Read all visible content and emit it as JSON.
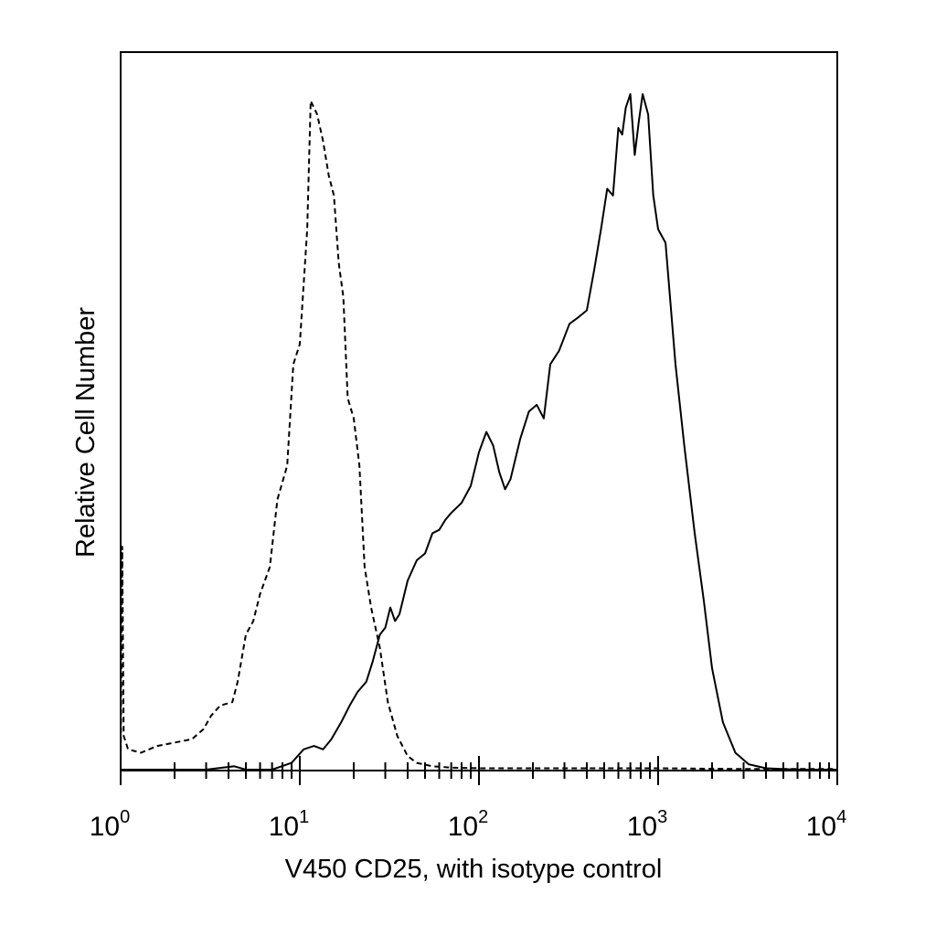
{
  "chart_data": {
    "type": "line",
    "xlabel": "V450 CD25, with isotype control",
    "ylabel": "Relative Cell Number",
    "xscale": "log",
    "xlim": [
      1,
      10000
    ],
    "ylim": [
      0,
      100
    ],
    "grid": false,
    "x_ticks": [
      {
        "base": "10",
        "exp": "0",
        "value": 1
      },
      {
        "base": "10",
        "exp": "1",
        "value": 10
      },
      {
        "base": "10",
        "exp": "2",
        "value": 100
      },
      {
        "base": "10",
        "exp": "3",
        "value": 1000
      },
      {
        "base": "10",
        "exp": "4",
        "value": 10000
      }
    ],
    "series": [
      {
        "style": "dashed",
        "color": "#000000",
        "points": [
          [
            1.0,
            0
          ],
          [
            1.02,
            33
          ],
          [
            1.04,
            5
          ],
          [
            1.1,
            3
          ],
          [
            1.3,
            2.5
          ],
          [
            1.6,
            3.5
          ],
          [
            2.0,
            4
          ],
          [
            2.5,
            4.5
          ],
          [
            2.9,
            6
          ],
          [
            3.2,
            8
          ],
          [
            3.6,
            9.5
          ],
          [
            4.2,
            10
          ],
          [
            4.5,
            13
          ],
          [
            5.0,
            20
          ],
          [
            5.5,
            22
          ],
          [
            6.0,
            26
          ],
          [
            6.8,
            30
          ],
          [
            7.5,
            40
          ],
          [
            8.5,
            45
          ],
          [
            9.2,
            60
          ],
          [
            10.0,
            63
          ],
          [
            11.0,
            80
          ],
          [
            11.5,
            99
          ],
          [
            12.5,
            97
          ],
          [
            13.5,
            93
          ],
          [
            14.5,
            88
          ],
          [
            15.5,
            85
          ],
          [
            16.5,
            75
          ],
          [
            17.5,
            70
          ],
          [
            18.5,
            55
          ],
          [
            20.0,
            52
          ],
          [
            21.5,
            45
          ],
          [
            23.0,
            30
          ],
          [
            25.0,
            24
          ],
          [
            28.0,
            18
          ],
          [
            31.0,
            10
          ],
          [
            35.0,
            5
          ],
          [
            40.0,
            2
          ],
          [
            45.0,
            1
          ],
          [
            55.0,
            0.5
          ],
          [
            70.0,
            0.3
          ],
          [
            100.0,
            0.2
          ],
          [
            200.0,
            0.2
          ],
          [
            500.0,
            0.2
          ],
          [
            1000.0,
            0.2
          ],
          [
            3000.0,
            0.1
          ],
          [
            10000.0,
            0.1
          ]
        ]
      },
      {
        "style": "solid",
        "color": "#000000",
        "points": [
          [
            1.0,
            0
          ],
          [
            2.0,
            0
          ],
          [
            3.0,
            0
          ],
          [
            4.3,
            0.5
          ],
          [
            5.0,
            0
          ],
          [
            7.0,
            0
          ],
          [
            9.0,
            1
          ],
          [
            10.5,
            3
          ],
          [
            12.0,
            3.5
          ],
          [
            13.5,
            3
          ],
          [
            15.0,
            4.5
          ],
          [
            17.0,
            7
          ],
          [
            19.0,
            9.5
          ],
          [
            21.0,
            11.5
          ],
          [
            23.5,
            13
          ],
          [
            25.5,
            16
          ],
          [
            28.0,
            20
          ],
          [
            30.0,
            21
          ],
          [
            32.0,
            24
          ],
          [
            34.0,
            22
          ],
          [
            36.0,
            23
          ],
          [
            40.0,
            28
          ],
          [
            45.0,
            31
          ],
          [
            50.0,
            32
          ],
          [
            55.0,
            35
          ],
          [
            60.0,
            35.5
          ],
          [
            65.0,
            37
          ],
          [
            70.0,
            38
          ],
          [
            80.0,
            39.5
          ],
          [
            90.0,
            42
          ],
          [
            100.0,
            47
          ],
          [
            110.0,
            50
          ],
          [
            120.0,
            48
          ],
          [
            130.0,
            44
          ],
          [
            140.0,
            41.5
          ],
          [
            150.0,
            43
          ],
          [
            170.0,
            49
          ],
          [
            190.0,
            53
          ],
          [
            210.0,
            54
          ],
          [
            230.0,
            52
          ],
          [
            250.0,
            60
          ],
          [
            280.0,
            62
          ],
          [
            320.0,
            66
          ],
          [
            360.0,
            67
          ],
          [
            400.0,
            68
          ],
          [
            440.0,
            74
          ],
          [
            480.0,
            80
          ],
          [
            520.0,
            86
          ],
          [
            560.0,
            85
          ],
          [
            600.0,
            95
          ],
          [
            630.0,
            94
          ],
          [
            660.0,
            98
          ],
          [
            700.0,
            100
          ],
          [
            740.0,
            91
          ],
          [
            780.0,
            96
          ],
          [
            820.0,
            100
          ],
          [
            880.0,
            97
          ],
          [
            940.0,
            85
          ],
          [
            1000.0,
            80
          ],
          [
            1100.0,
            78
          ],
          [
            1250.0,
            60
          ],
          [
            1400.0,
            48
          ],
          [
            1600.0,
            35
          ],
          [
            1800.0,
            25
          ],
          [
            2000.0,
            15
          ],
          [
            2300.0,
            7
          ],
          [
            2700.0,
            2.5
          ],
          [
            3200.0,
            0.8
          ],
          [
            4000.0,
            0.2
          ],
          [
            6000.0,
            0
          ],
          [
            10000.0,
            0
          ]
        ]
      }
    ]
  }
}
